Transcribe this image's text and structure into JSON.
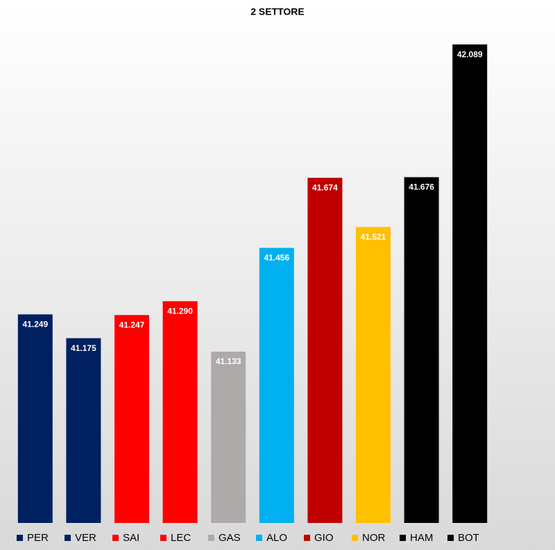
{
  "chart_data": {
    "type": "bar",
    "title": "2 SETTORE",
    "categories": [
      "PER",
      "VER",
      "SAI",
      "LEC",
      "GAS",
      "ALO",
      "GIO",
      "NOR",
      "HAM",
      "BOT"
    ],
    "values": [
      41.249,
      41.175,
      41.247,
      41.29,
      41.133,
      41.456,
      41.674,
      41.521,
      41.676,
      42.089
    ],
    "value_labels": [
      "41.249",
      "41.175",
      "41.247",
      "41.290",
      "41.133",
      "41.456",
      "41.674",
      "41.521",
      "41.676",
      "42.089"
    ],
    "colors": [
      "#002060",
      "#002060",
      "#ff0000",
      "#ff0000",
      "#aeaaaa",
      "#00b0f0",
      "#c00000",
      "#ffc000",
      "#000000",
      "#000000"
    ],
    "ylim": [
      40.6,
      42.1
    ],
    "legend": "bottom"
  }
}
